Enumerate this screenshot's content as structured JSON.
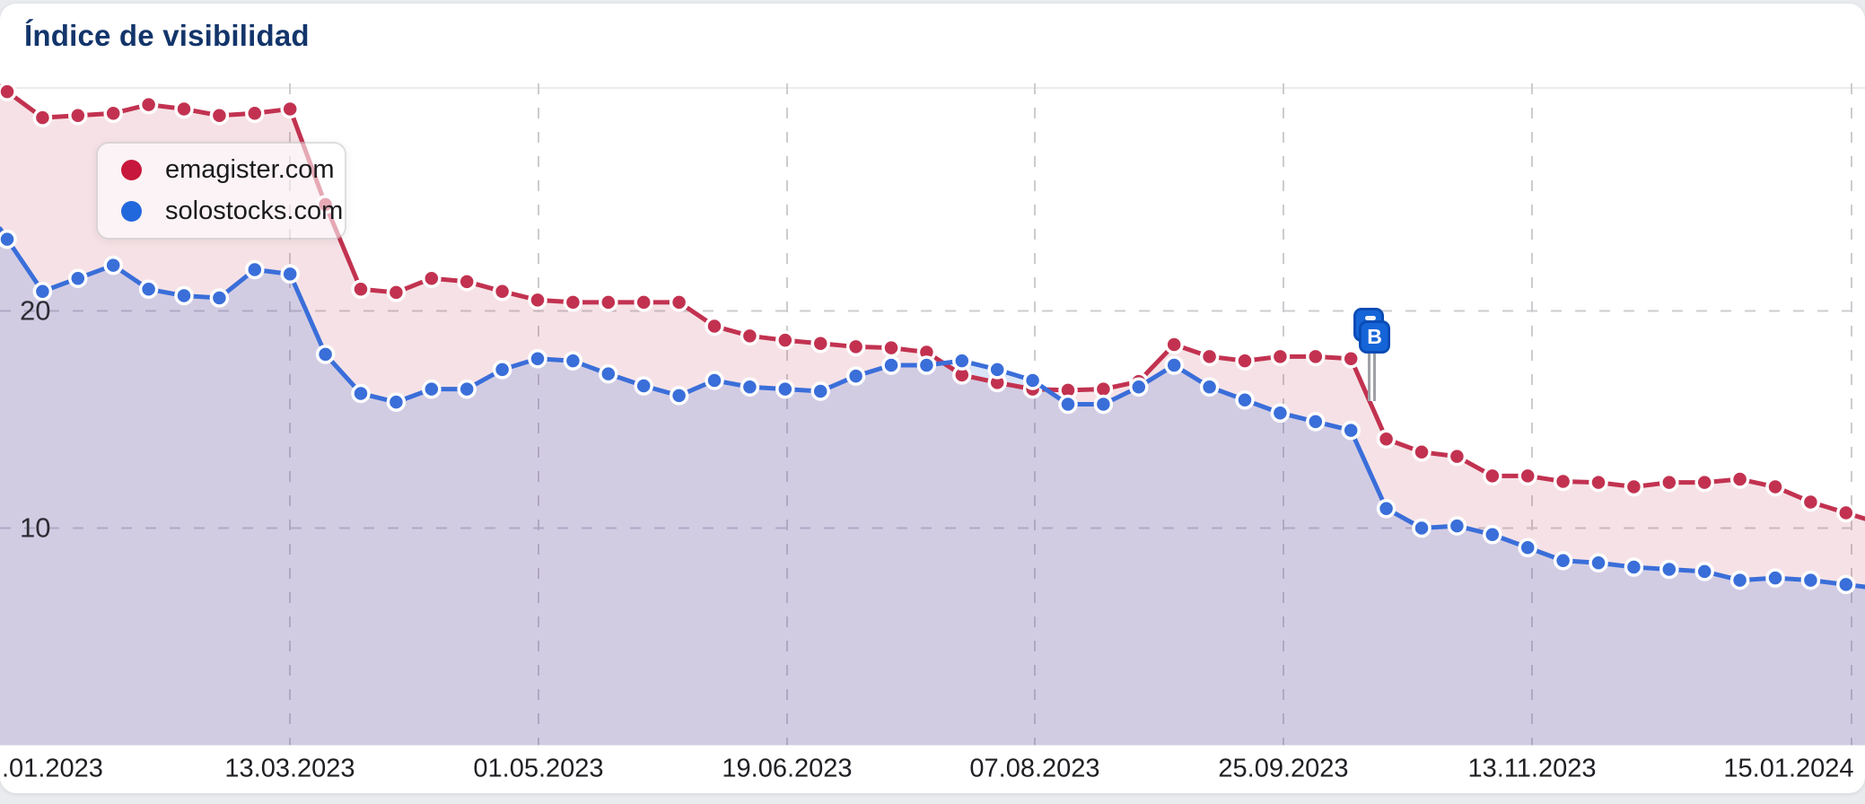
{
  "header": {
    "title": "Índice de visibilidad"
  },
  "legend": {
    "items": [
      {
        "label": "emagister.com",
        "color": "#c7173c"
      },
      {
        "label": "solostocks.com",
        "color": "#2268dd"
      }
    ]
  },
  "event_pin": {
    "label": "B",
    "count": 2,
    "color": "#1565d8"
  },
  "chart_data": {
    "type": "area",
    "title": "Índice de visibilidad",
    "grid": "dashed",
    "legend_position": "top-left",
    "ylim": [
      0,
      30.5
    ],
    "y_ticks": [
      20,
      10
    ],
    "x_tick_labels": [
      ".01.2023",
      "13.03.2023",
      "01.05.2023",
      "19.06.2023",
      "07.08.2023",
      "25.09.2023",
      "13.11.2023",
      "15.01.2024"
    ],
    "x_interval": "weekly",
    "series": [
      {
        "name": "emagister.com",
        "color": "#c23250",
        "fill": "rgba(194,48,78,0.14)",
        "values": [
          30.1,
          28.9,
          29.0,
          29.1,
          29.5,
          29.3,
          29.0,
          29.1,
          29.3,
          24.9,
          21.0,
          20.85,
          21.5,
          21.35,
          20.9,
          20.5,
          20.4,
          20.4,
          20.4,
          20.4,
          19.3,
          18.85,
          18.65,
          18.5,
          18.35,
          18.3,
          18.1,
          17.05,
          16.7,
          16.4,
          16.35,
          16.4,
          16.75,
          18.45,
          17.9,
          17.7,
          17.9,
          17.9,
          17.8,
          14.1,
          13.5,
          13.3,
          12.4,
          12.4,
          12.15,
          12.1,
          11.9,
          12.1,
          12.1,
          12.25,
          11.9,
          11.2,
          10.7
        ]
      },
      {
        "name": "solostocks.com",
        "color": "#3a6ed9",
        "fill": "rgba(58,110,217,0.19)",
        "values": [
          23.3,
          20.9,
          21.5,
          22.1,
          21.0,
          20.7,
          20.6,
          21.9,
          21.7,
          18.0,
          16.2,
          15.8,
          16.4,
          16.4,
          17.3,
          17.8,
          17.7,
          17.1,
          16.55,
          16.1,
          16.8,
          16.5,
          16.4,
          16.3,
          17.0,
          17.5,
          17.5,
          17.7,
          17.3,
          16.8,
          15.7,
          15.7,
          16.5,
          17.5,
          16.5,
          15.9,
          15.3,
          14.9,
          14.5,
          10.9,
          10.0,
          10.1,
          9.7,
          9.1,
          8.5,
          8.4,
          8.2,
          8.1,
          8.0,
          7.6,
          7.7,
          7.6,
          7.4
        ]
      }
    ]
  }
}
